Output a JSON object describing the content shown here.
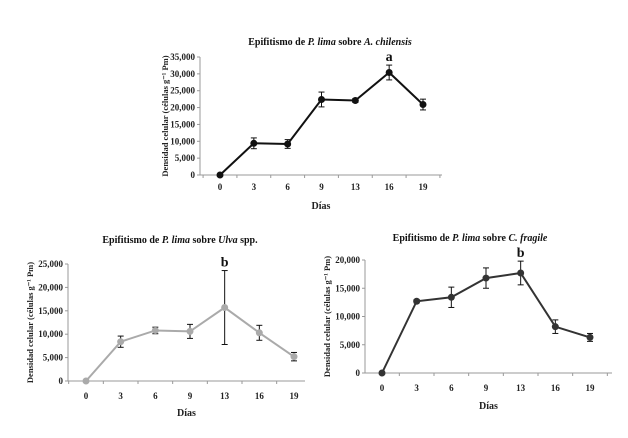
{
  "chart_data": [
    {
      "type": "line",
      "title_parts": [
        {
          "text": "Epifitismo de ",
          "italic": false
        },
        {
          "text": "P. lima",
          "italic": true
        },
        {
          "text": " sobre ",
          "italic": false
        },
        {
          "text": "A. chilensis",
          "italic": true
        }
      ],
      "xlabel": "Días",
      "ylabel": "Densidad celular (células g⁻¹ Pm)",
      "categories": [
        "0",
        "3",
        "6",
        "9",
        "13",
        "16",
        "19"
      ],
      "values": [
        0,
        9400,
        9200,
        22400,
        22100,
        30400,
        20900
      ],
      "errors": [
        0,
        1600,
        1300,
        2200,
        600,
        2200,
        1600
      ],
      "ylim": [
        0,
        35000
      ],
      "yticks": [
        "0",
        "5,000",
        "10,000",
        "15,000",
        "20,000",
        "25,000",
        "30,000",
        "35,000"
      ],
      "annotations": [
        {
          "category": "16",
          "text": "a"
        }
      ],
      "line_color": "#111111",
      "marker_color": "#111111",
      "grid": false
    },
    {
      "type": "line",
      "title_parts": [
        {
          "text": "Epifitismo  de ",
          "italic": false
        },
        {
          "text": "P. lima",
          "italic": true
        },
        {
          "text": " sobre ",
          "italic": false
        },
        {
          "text": "Ulva",
          "italic": true
        },
        {
          "text": " spp.",
          "italic": false
        }
      ],
      "xlabel": "Días",
      "ylabel": "Densidad celular (células g⁻¹ Pm)",
      "categories": [
        "0",
        "3",
        "6",
        "9",
        "13",
        "16",
        "19"
      ],
      "values": [
        0,
        8400,
        10800,
        10600,
        15700,
        10300,
        5200
      ],
      "errors": [
        0,
        1200,
        700,
        1500,
        7900,
        1600,
        900
      ],
      "ylim": [
        0,
        25000
      ],
      "yticks": [
        "0",
        "5,000",
        "10,000",
        "15,000",
        "20,000",
        "25,000"
      ],
      "annotations": [
        {
          "category": "13",
          "text": "b"
        }
      ],
      "line_color": "#aaaaaa",
      "marker_color": "#aaaaaa",
      "grid": false
    },
    {
      "type": "line",
      "title_parts": [
        {
          "text": "Epifitismo  de ",
          "italic": false
        },
        {
          "text": "P. lima",
          "italic": true
        },
        {
          "text": " sobre ",
          "italic": false
        },
        {
          "text": "C. fragile",
          "italic": true
        }
      ],
      "xlabel": "Días",
      "ylabel": "Densidad celular (células g⁻¹ Pm)",
      "categories": [
        "0",
        "3",
        "6",
        "9",
        "13",
        "16",
        "19"
      ],
      "values": [
        0,
        12700,
        13400,
        16800,
        17700,
        8200,
        6300
      ],
      "errors": [
        0,
        300,
        1800,
        1800,
        2100,
        1200,
        700
      ],
      "ylim": [
        0,
        20000
      ],
      "yticks": [
        "0",
        "5,000",
        "10,000",
        "15,000",
        "20,000"
      ],
      "annotations": [
        {
          "category": "13",
          "text": "b"
        }
      ],
      "line_color": "#333333",
      "marker_color": "#333333",
      "grid": false
    }
  ]
}
